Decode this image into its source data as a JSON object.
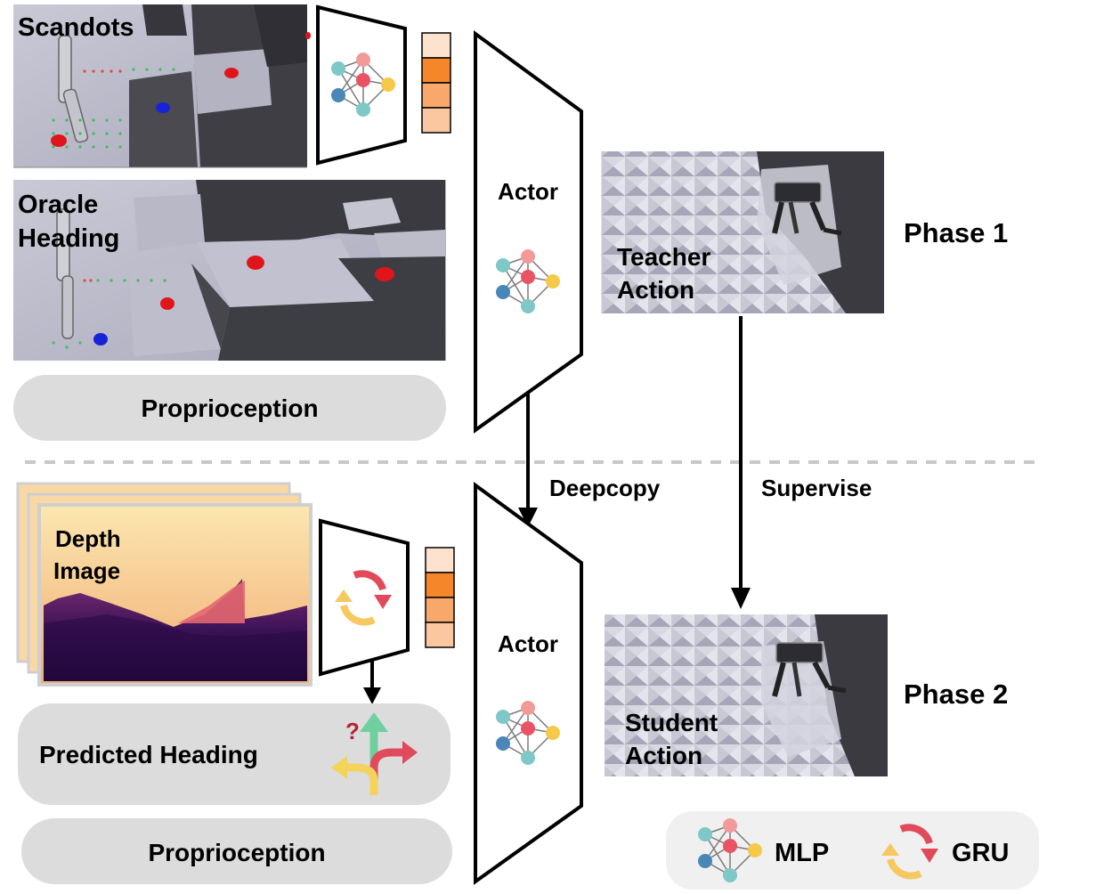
{
  "phase1": {
    "scandots_label": "Scandots",
    "oracle_label_line1": "Oracle",
    "oracle_label_line2": "Heading",
    "proprioception_label": "Proprioception",
    "actor_label": "Actor",
    "teacher_label_line1": "Teacher",
    "teacher_label_line2": "Action",
    "phase_label": "Phase 1"
  },
  "arrows": {
    "deepcopy_label": "Deepcopy",
    "supervise_label": "Supervise"
  },
  "phase2": {
    "depth_label_line1": "Depth",
    "depth_label_line2": "Image",
    "predicted_heading_label": "Predicted Heading",
    "question_mark": "?",
    "proprioception_label": "Proprioception",
    "actor_label": "Actor",
    "student_label_line1": "Student",
    "student_label_line2": "Action",
    "phase_label": "Phase 2"
  },
  "legend": {
    "mlp_label": "MLP",
    "gru_label": "GRU"
  },
  "colors": {
    "scandot_red": "#e0151b",
    "scandot_blue": "#1822d8",
    "feature_light": "#fde3cf",
    "feature_orange": "#f5862a",
    "feature_mid": "#f7a86a",
    "panel_gray": "#dcdcdc",
    "gru_red": "#e04a5a",
    "gru_yellow": "#f6c860",
    "node_teal": "#7ec8c8",
    "node_pink": "#f29a9a",
    "node_red": "#ea5363",
    "node_yellow": "#f7c948",
    "node_blue": "#4a86b8"
  }
}
